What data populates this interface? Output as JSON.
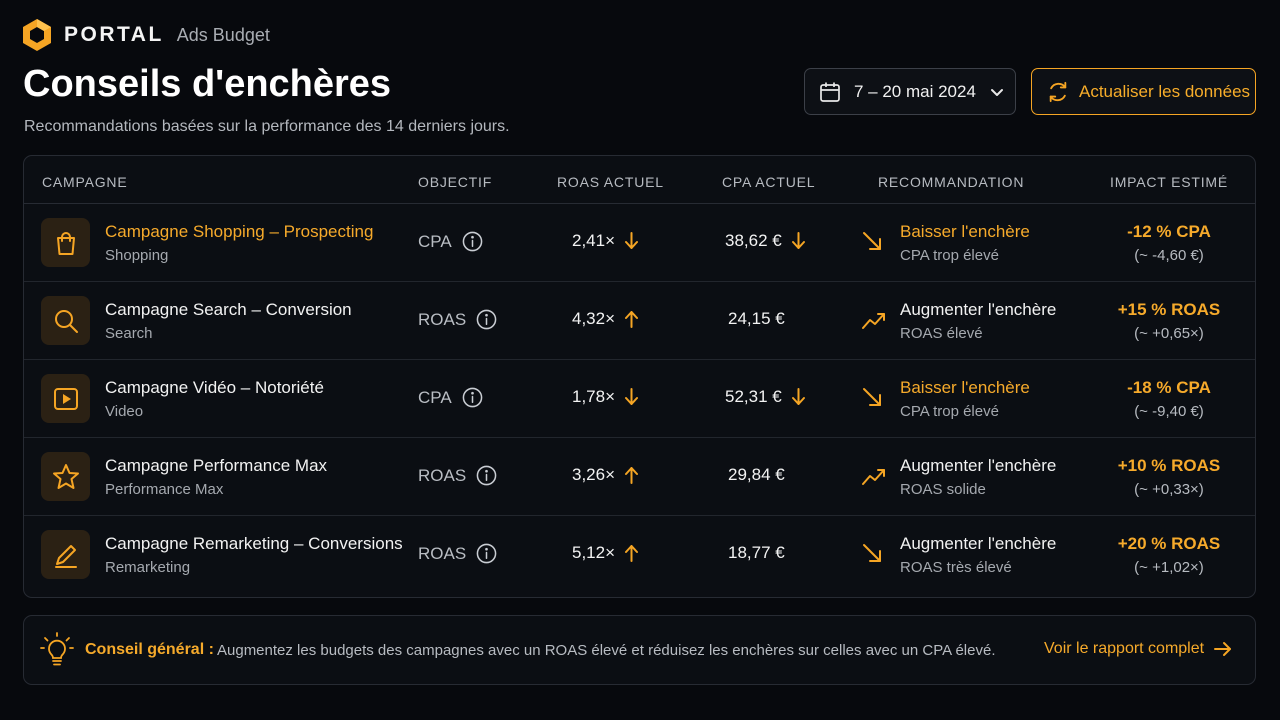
{
  "brand": {
    "name": "PORTAL",
    "product": "Ads Budget"
  },
  "page": {
    "title": "Conseils d'enchères",
    "subtitle": "Recommandations basées sur la performance des 14 derniers jours."
  },
  "toolbar": {
    "date_range": "7 – 20 mai 2024",
    "refresh_label": "Actualiser les données"
  },
  "table": {
    "headers": {
      "campaign": "CAMPAGNE",
      "objective": "OBJECTIF",
      "roas": "ROAS ACTUEL",
      "cpa": "CPA ACTUEL",
      "recommendation": "RECOMMANDATION",
      "impact": "IMPACT ESTIMÉ"
    },
    "rows": [
      {
        "icon": "shopping-bag-icon",
        "name": "Campagne Shopping – Prospecting",
        "name_highlight": true,
        "type": "Shopping",
        "objective": "CPA",
        "roas": "2,41×",
        "roas_trend": "down",
        "cpa": "38,62 €",
        "cpa_trend": "down",
        "recommendation": "Baisser l'enchère",
        "recommendation_tone": "accent",
        "recommendation_icon": "trend-down-icon",
        "note": "CPA trop élevé",
        "impact": "-12 % CPA",
        "impact_detail": "(~ -4,60 €)"
      },
      {
        "icon": "search-icon",
        "name": "Campagne Search – Conversion",
        "name_highlight": false,
        "type": "Search",
        "objective": "ROAS",
        "roas": "4,32×",
        "roas_trend": "up",
        "cpa": "24,15 €",
        "cpa_trend": null,
        "recommendation": "Augmenter l'enchère",
        "recommendation_tone": "white",
        "recommendation_icon": "trend-up-icon",
        "note": "ROAS élevé",
        "impact": "+15 % ROAS",
        "impact_detail": "(~ +0,65×)"
      },
      {
        "icon": "play-video-icon",
        "name": "Campagne Vidéo – Notoriété",
        "name_highlight": false,
        "type": "Video",
        "objective": "CPA",
        "roas": "1,78×",
        "roas_trend": "down",
        "cpa": "52,31 €",
        "cpa_trend": "down",
        "recommendation": "Baisser l'enchère",
        "recommendation_tone": "accent",
        "recommendation_icon": "trend-down-icon",
        "note": "CPA trop élevé",
        "impact": "-18 % CPA",
        "impact_detail": "(~ -9,40 €)"
      },
      {
        "icon": "star-icon",
        "name": "Campagne Performance Max",
        "name_highlight": false,
        "type": "Performance Max",
        "objective": "ROAS",
        "roas": "3,26×",
        "roas_trend": "up",
        "cpa": "29,84 €",
        "cpa_trend": null,
        "recommendation": "Augmenter l'enchère",
        "recommendation_tone": "white",
        "recommendation_icon": "trend-up-icon",
        "note": "ROAS solide",
        "impact": "+10 % ROAS",
        "impact_detail": "(~ +0,33×)"
      },
      {
        "icon": "edit-pencil-icon",
        "name": "Campagne Remarketing – Conversions",
        "name_highlight": false,
        "type": "Remarketing",
        "objective": "ROAS",
        "roas": "5,12×",
        "roas_trend": "up",
        "cpa": "18,77 €",
        "cpa_trend": null,
        "recommendation": "Augmenter l'enchère",
        "recommendation_tone": "white",
        "recommendation_icon": "trend-down-icon",
        "note": "ROAS très élevé",
        "impact": "+20 % ROAS",
        "impact_detail": "(~ +1,02×)"
      }
    ]
  },
  "tip": {
    "label": "Conseil général :",
    "text": "Augmentez les budgets des campagnes avec un ROAS élevé et réduisez les enchères sur celles avec un CPA élevé.",
    "link": "Voir le rapport complet"
  },
  "colors": {
    "accent": "#f6aa2b",
    "background": "#07090d",
    "card": "#0b0e13",
    "icon_tile": "#2b2114"
  }
}
